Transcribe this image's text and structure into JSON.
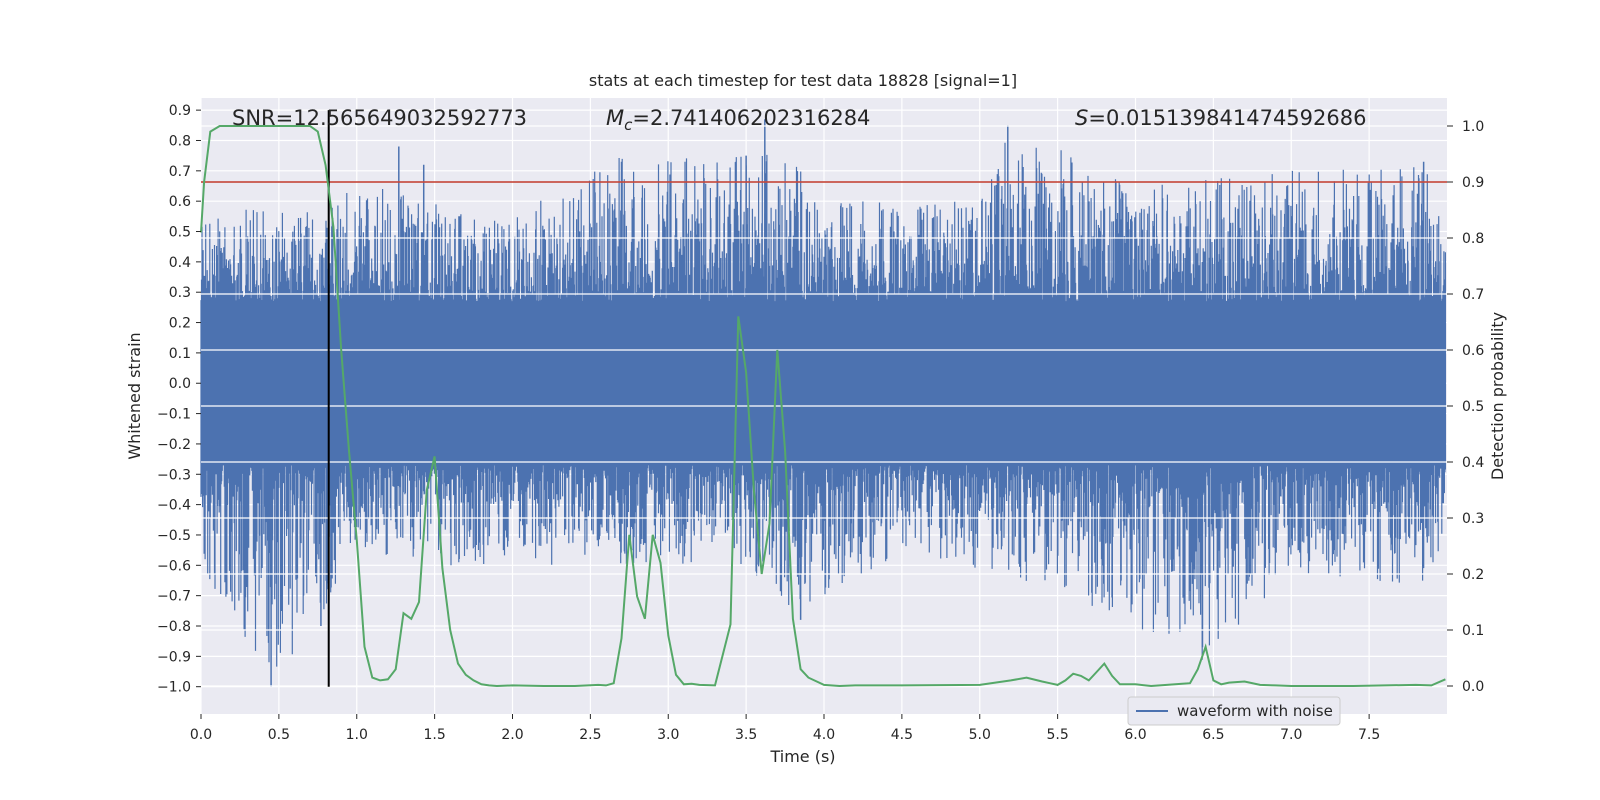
{
  "chart_data": {
    "type": "line",
    "title": "stats at each timestep for test data 18828 [signal=1]",
    "xlabel": "Time (s)",
    "ylabel_left": "Whitened strain",
    "ylabel_right": "Detection probability",
    "xlim": [
      0.0,
      8.0
    ],
    "ylim_left": [
      -1.09,
      0.94
    ],
    "ylim_right": [
      -0.05,
      1.05
    ],
    "x_ticks": [
      0.0,
      0.5,
      1.0,
      1.5,
      2.0,
      2.5,
      3.0,
      3.5,
      4.0,
      4.5,
      5.0,
      5.5,
      6.0,
      6.5,
      7.0,
      7.5
    ],
    "y_ticks_left": [
      0.9,
      0.8,
      0.7,
      0.6,
      0.5,
      0.4,
      0.3,
      0.2,
      0.1,
      0.0,
      -0.1,
      -0.2,
      -0.3,
      -0.4,
      -0.5,
      -0.6,
      -0.7,
      -0.8,
      -0.9,
      -1.0
    ],
    "y_ticks_right": [
      1.0,
      0.9,
      0.8,
      0.7,
      0.6,
      0.5,
      0.4,
      0.3,
      0.2,
      0.1,
      0.0
    ],
    "grid": true,
    "legend_position": "lower-right",
    "annotations": {
      "snr": "SNR=12.565649032592773",
      "mc_symbol": "M",
      "mc_sub": "c",
      "mc_value": "=2.741406202316284",
      "s_symbol": "S",
      "s_value": "=0.015139841474592686"
    },
    "threshold": {
      "value": 0.9,
      "axis": "right",
      "color": "#c0392b"
    },
    "event_marker": {
      "x": 0.82,
      "y_range": [
        -1.0,
        0.9
      ],
      "color": "#000000"
    },
    "series": [
      {
        "name": "waveform with noise",
        "axis": "left",
        "color": "#4c72b0",
        "style": "dense-noise",
        "envelope_upper": [
          [
            0.0,
            0.55
          ],
          [
            0.45,
            0.6
          ],
          [
            0.8,
            0.55
          ],
          [
            1.0,
            0.7
          ],
          [
            1.5,
            0.6
          ],
          [
            2.0,
            0.55
          ],
          [
            2.7,
            0.75
          ],
          [
            3.5,
            0.75
          ],
          [
            3.62,
            0.87
          ],
          [
            4.0,
            0.6
          ],
          [
            5.0,
            0.6
          ],
          [
            5.2,
            0.85
          ],
          [
            6.0,
            0.65
          ],
          [
            7.0,
            0.7
          ],
          [
            7.85,
            0.73
          ],
          [
            7.99,
            0.5
          ]
        ],
        "envelope_lower": [
          [
            0.0,
            -0.6
          ],
          [
            0.45,
            -1.0
          ],
          [
            0.77,
            -0.8
          ],
          [
            1.0,
            -0.55
          ],
          [
            1.5,
            -0.6
          ],
          [
            2.5,
            -0.6
          ],
          [
            3.5,
            -0.6
          ],
          [
            3.85,
            -0.78
          ],
          [
            4.5,
            -0.55
          ],
          [
            5.5,
            -0.68
          ],
          [
            6.45,
            -0.92
          ],
          [
            7.0,
            -0.62
          ],
          [
            7.85,
            -0.67
          ],
          [
            7.99,
            -0.5
          ]
        ],
        "spikes": [
          [
            0.45,
            -1.0
          ],
          [
            0.77,
            -0.8
          ],
          [
            0.82,
            -0.46
          ],
          [
            1.27,
            0.78
          ],
          [
            1.43,
            0.72
          ],
          [
            2.7,
            0.73
          ],
          [
            3.5,
            0.75
          ],
          [
            3.62,
            0.87
          ],
          [
            3.85,
            -0.78
          ],
          [
            5.18,
            0.85
          ],
          [
            6.43,
            -0.87
          ],
          [
            7.85,
            0.73
          ]
        ]
      },
      {
        "name": "",
        "axis": "right",
        "color": "#55a868",
        "x": [
          0.0,
          0.02,
          0.06,
          0.12,
          0.2,
          0.3,
          0.4,
          0.5,
          0.6,
          0.7,
          0.75,
          0.8,
          0.85,
          0.9,
          0.95,
          1.0,
          1.05,
          1.1,
          1.15,
          1.2,
          1.25,
          1.3,
          1.35,
          1.4,
          1.45,
          1.5,
          1.55,
          1.6,
          1.65,
          1.7,
          1.75,
          1.8,
          1.85,
          1.9,
          2.0,
          2.2,
          2.4,
          2.55,
          2.6,
          2.65,
          2.7,
          2.75,
          2.8,
          2.85,
          2.9,
          2.95,
          3.0,
          3.05,
          3.1,
          3.15,
          3.2,
          3.3,
          3.4,
          3.45,
          3.5,
          3.55,
          3.6,
          3.65,
          3.7,
          3.75,
          3.8,
          3.85,
          3.9,
          4.0,
          4.1,
          4.2,
          4.5,
          5.0,
          5.2,
          5.3,
          5.4,
          5.45,
          5.5,
          5.55,
          5.6,
          5.65,
          5.7,
          5.75,
          5.8,
          5.85,
          5.9,
          6.0,
          6.1,
          6.2,
          6.3,
          6.35,
          6.4,
          6.45,
          6.5,
          6.55,
          6.6,
          6.7,
          6.8,
          6.9,
          7.0,
          7.2,
          7.4,
          7.6,
          7.8,
          7.9,
          7.99
        ],
        "values": [
          0.81,
          0.9,
          0.99,
          1.0,
          1.0,
          1.0,
          1.0,
          1.0,
          1.0,
          1.0,
          0.99,
          0.93,
          0.82,
          0.6,
          0.42,
          0.26,
          0.07,
          0.015,
          0.01,
          0.012,
          0.03,
          0.13,
          0.12,
          0.15,
          0.35,
          0.41,
          0.21,
          0.1,
          0.04,
          0.02,
          0.01,
          0.003,
          0.001,
          0.0,
          0.001,
          0.0,
          0.0,
          0.002,
          0.001,
          0.005,
          0.085,
          0.27,
          0.16,
          0.12,
          0.27,
          0.22,
          0.09,
          0.02,
          0.003,
          0.004,
          0.002,
          0.001,
          0.11,
          0.66,
          0.56,
          0.35,
          0.2,
          0.29,
          0.6,
          0.42,
          0.12,
          0.03,
          0.015,
          0.002,
          0.0,
          0.001,
          0.001,
          0.002,
          0.01,
          0.015,
          0.008,
          0.005,
          0.002,
          0.01,
          0.022,
          0.018,
          0.01,
          0.025,
          0.04,
          0.018,
          0.003,
          0.003,
          0.0,
          0.002,
          0.004,
          0.005,
          0.03,
          0.07,
          0.01,
          0.003,
          0.006,
          0.008,
          0.002,
          0.001,
          0.0,
          0.0,
          0.0,
          0.001,
          0.002,
          0.001,
          0.012
        ]
      }
    ]
  }
}
